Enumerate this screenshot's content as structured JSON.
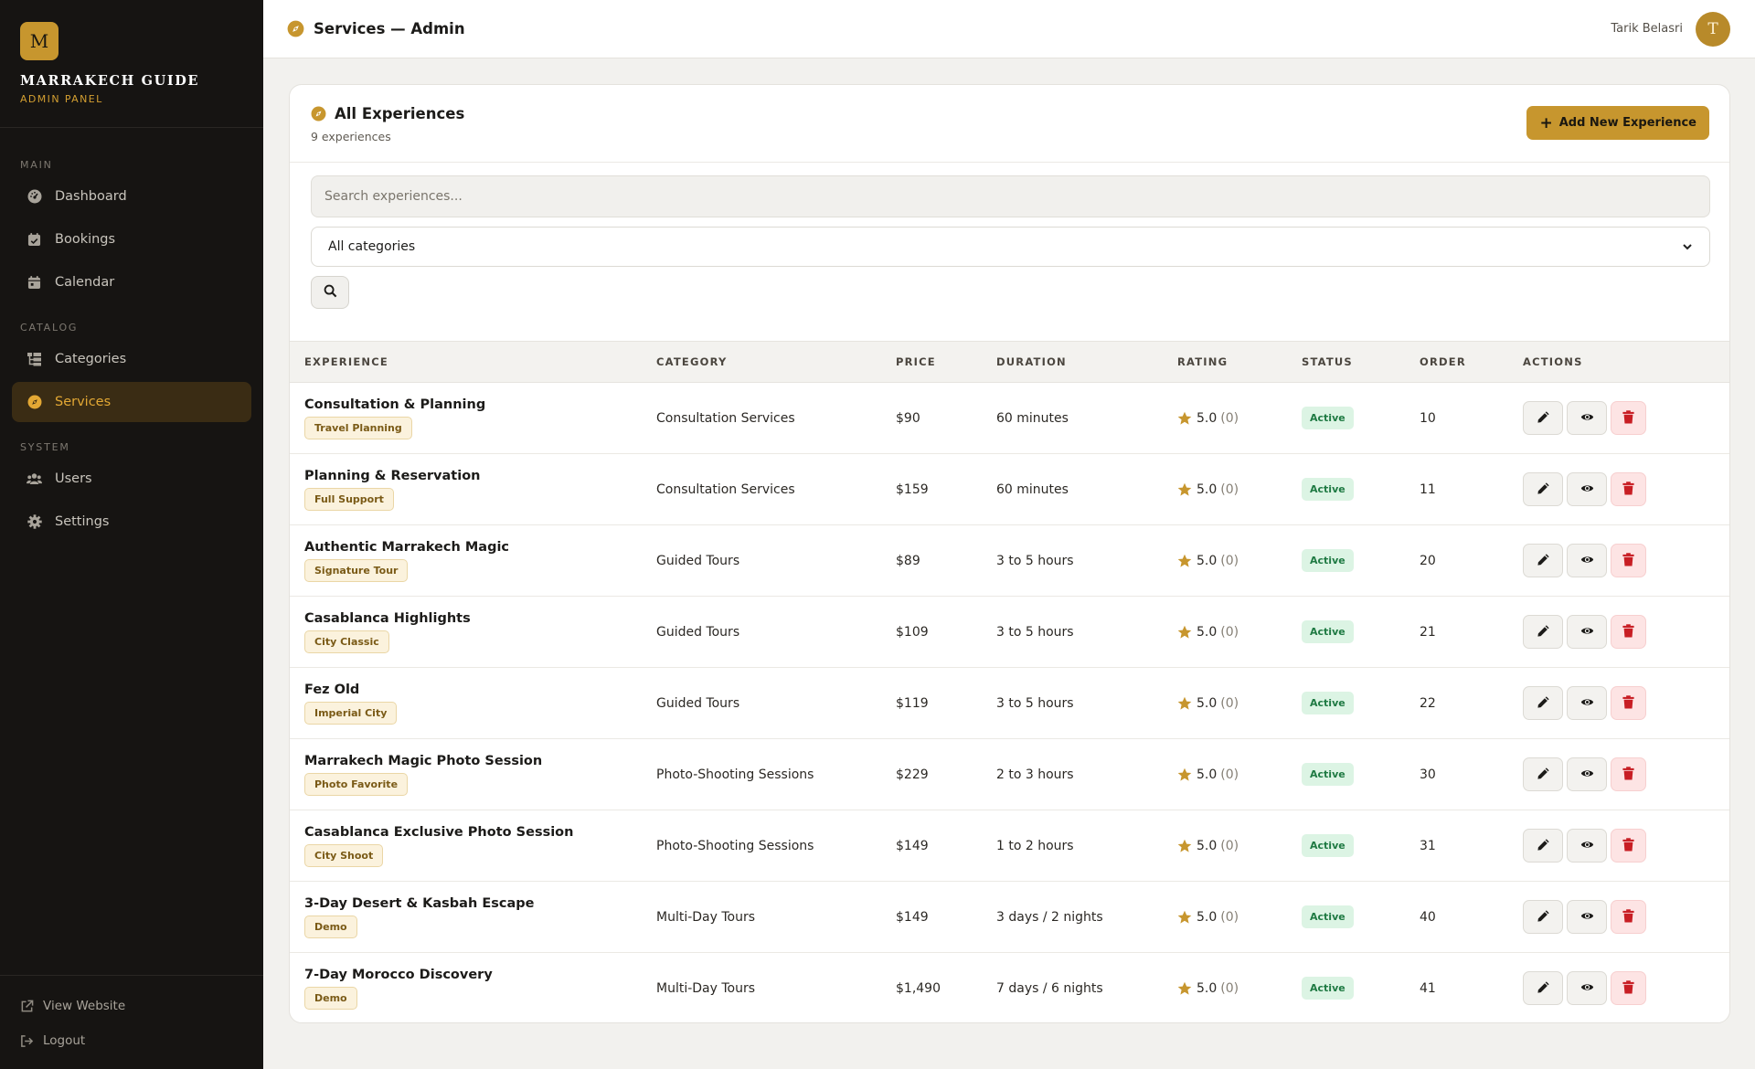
{
  "brand": {
    "logo_letter": "M",
    "name": "MARRAKECH GUIDE",
    "subtitle": "ADMIN PANEL"
  },
  "sidebar": {
    "sections": [
      {
        "label": "MAIN",
        "items": [
          {
            "label": "Dashboard",
            "icon": "dashboard-icon"
          },
          {
            "label": "Bookings",
            "icon": "bookings-icon"
          },
          {
            "label": "Calendar",
            "icon": "calendar-icon"
          }
        ]
      },
      {
        "label": "CATALOG",
        "items": [
          {
            "label": "Categories",
            "icon": "categories-icon"
          },
          {
            "label": "Services",
            "icon": "compass-icon",
            "active": true
          }
        ]
      },
      {
        "label": "SYSTEM",
        "items": [
          {
            "label": "Users",
            "icon": "users-icon"
          },
          {
            "label": "Settings",
            "icon": "gear-icon"
          }
        ]
      }
    ],
    "footer": {
      "view_website": "View Website",
      "logout": "Logout"
    }
  },
  "header": {
    "title": "Services — Admin",
    "user_name": "Tarik Belasri",
    "avatar_letter": "T"
  },
  "panel": {
    "title": "All Experiences",
    "count": "9 experiences",
    "add_button": "Add New Experience",
    "search_placeholder": "Search experiences...",
    "category_select": "All categories"
  },
  "table": {
    "columns": [
      "EXPERIENCE",
      "CATEGORY",
      "PRICE",
      "DURATION",
      "RATING",
      "STATUS",
      "ORDER",
      "ACTIONS"
    ],
    "rows": [
      {
        "name": "Consultation & Planning",
        "tag": "Travel Planning",
        "category": "Consultation Services",
        "price": "$90",
        "duration": "60 minutes",
        "rating": "5.0",
        "reviews": "(0)",
        "status": "Active",
        "order": "10"
      },
      {
        "name": "Planning & Reservation",
        "tag": "Full Support",
        "category": "Consultation Services",
        "price": "$159",
        "duration": "60 minutes",
        "rating": "5.0",
        "reviews": "(0)",
        "status": "Active",
        "order": "11"
      },
      {
        "name": "Authentic Marrakech Magic",
        "tag": "Signature Tour",
        "category": "Guided Tours",
        "price": "$89",
        "duration": "3 to 5 hours",
        "rating": "5.0",
        "reviews": "(0)",
        "status": "Active",
        "order": "20"
      },
      {
        "name": "Casablanca Highlights",
        "tag": "City Classic",
        "category": "Guided Tours",
        "price": "$109",
        "duration": "3 to 5 hours",
        "rating": "5.0",
        "reviews": "(0)",
        "status": "Active",
        "order": "21"
      },
      {
        "name": "Fez Old",
        "tag": "Imperial City",
        "category": "Guided Tours",
        "price": "$119",
        "duration": "3 to 5 hours",
        "rating": "5.0",
        "reviews": "(0)",
        "status": "Active",
        "order": "22"
      },
      {
        "name": "Marrakech Magic Photo Session",
        "tag": "Photo Favorite",
        "category": "Photo-Shooting Sessions",
        "price": "$229",
        "duration": "2 to 3 hours",
        "rating": "5.0",
        "reviews": "(0)",
        "status": "Active",
        "order": "30"
      },
      {
        "name": "Casablanca Exclusive Photo Session",
        "tag": "City Shoot",
        "category": "Photo-Shooting Sessions",
        "price": "$149",
        "duration": "1 to 2 hours",
        "rating": "5.0",
        "reviews": "(0)",
        "status": "Active",
        "order": "31"
      },
      {
        "name": "3-Day Desert & Kasbah Escape",
        "tag": "Demo",
        "category": "Multi-Day Tours",
        "price": "$149",
        "duration": "3 days / 2 nights",
        "rating": "5.0",
        "reviews": "(0)",
        "status": "Active",
        "order": "40"
      },
      {
        "name": "7-Day Morocco Discovery",
        "tag": "Demo",
        "category": "Multi-Day Tours",
        "price": "$1,490",
        "duration": "7 days / 6 nights",
        "rating": "5.0",
        "reviews": "(0)",
        "status": "Active",
        "order": "41"
      }
    ]
  },
  "colors": {
    "accent": "#c7962e",
    "sidebar_bg": "#161412",
    "active_bg": "#3a2c14",
    "status_bg": "#dcf4e4",
    "status_text": "#1f7a43",
    "delete": "#c81e24"
  }
}
